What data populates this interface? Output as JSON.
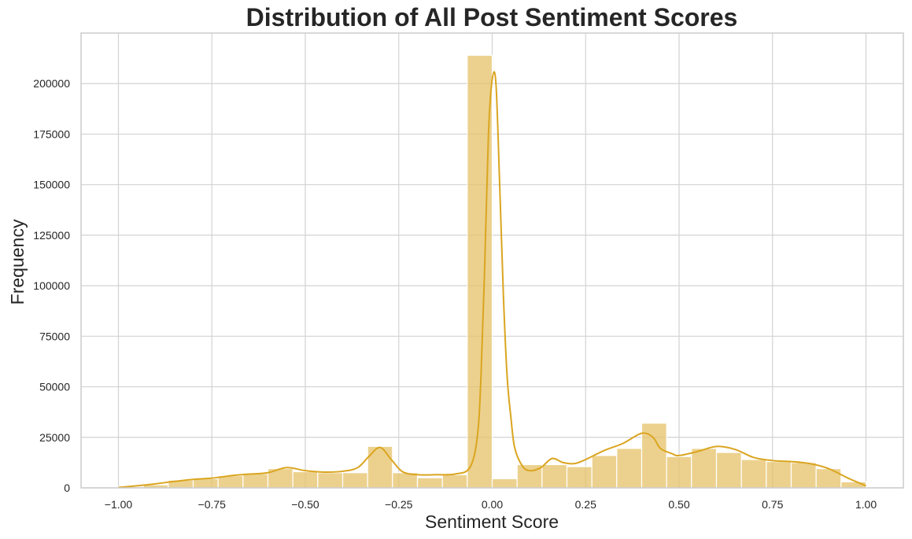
{
  "chart_data": {
    "type": "histogram",
    "title": "Distribution of All Post Sentiment Scores",
    "xlabel": "Sentiment Score",
    "ylabel": "Frequency",
    "xlim": [
      -1.1,
      1.1
    ],
    "ylim": [
      0,
      225000
    ],
    "x_ticks": [
      -1.0,
      -0.75,
      -0.5,
      -0.25,
      0.0,
      0.25,
      0.5,
      0.75,
      1.0
    ],
    "x_tick_labels": [
      "−1.00",
      "−0.75",
      "−0.50",
      "−0.25",
      "0.00",
      "0.25",
      "0.50",
      "0.75",
      "1.00"
    ],
    "y_ticks": [
      0,
      25000,
      50000,
      75000,
      100000,
      125000,
      150000,
      175000,
      200000
    ],
    "y_tick_labels": [
      "0",
      "25000",
      "50000",
      "75000",
      "100000",
      "125000",
      "150000",
      "175000",
      "200000"
    ],
    "grid": true,
    "bar_color": "#e6c168",
    "bar_opacity": 0.75,
    "line_color": "#daa520",
    "bin_edges": [
      -1.0,
      -0.9333,
      -0.8667,
      -0.8,
      -0.7333,
      -0.6667,
      -0.6,
      -0.5333,
      -0.4667,
      -0.4,
      -0.3333,
      -0.2667,
      -0.2,
      -0.1333,
      -0.0667,
      0.0,
      0.0667,
      0.1333,
      0.2,
      0.2667,
      0.3333,
      0.4,
      0.4667,
      0.5333,
      0.6,
      0.6667,
      0.7333,
      0.8,
      0.8667,
      0.9333,
      1.0
    ],
    "counts": [
      600,
      1500,
      3800,
      4500,
      6000,
      7000,
      9500,
      8000,
      7500,
      7500,
      20500,
      7500,
      5000,
      6500,
      214000,
      4500,
      11500,
      11500,
      10500,
      16000,
      19500,
      32000,
      15500,
      19500,
      17500,
      14000,
      13000,
      12500,
      9500,
      3000
    ],
    "kde": {
      "x": [
        -1.0,
        -0.95,
        -0.9,
        -0.85,
        -0.8,
        -0.75,
        -0.7,
        -0.65,
        -0.6,
        -0.55,
        -0.5,
        -0.45,
        -0.4,
        -0.36,
        -0.33,
        -0.3,
        -0.27,
        -0.24,
        -0.2,
        -0.15,
        -0.1,
        -0.06,
        -0.04,
        -0.03,
        -0.02,
        -0.01,
        0.0,
        0.01,
        0.02,
        0.03,
        0.04,
        0.05,
        0.06,
        0.08,
        0.1,
        0.13,
        0.16,
        0.19,
        0.22,
        0.25,
        0.3,
        0.35,
        0.4,
        0.43,
        0.45,
        0.48,
        0.5,
        0.55,
        0.6,
        0.65,
        0.7,
        0.75,
        0.8,
        0.85,
        0.9,
        0.95,
        1.0
      ],
      "y": [
        200,
        1000,
        2000,
        3200,
        4200,
        4800,
        6000,
        6800,
        7500,
        10000,
        8500,
        7800,
        8200,
        10000,
        15500,
        20000,
        14000,
        8000,
        6500,
        6500,
        6800,
        10000,
        25000,
        55000,
        110000,
        175000,
        202000,
        200000,
        150000,
        95000,
        55000,
        35000,
        20000,
        11000,
        8500,
        10000,
        14500,
        12500,
        12000,
        14000,
        18500,
        22000,
        27000,
        25000,
        19500,
        17000,
        16000,
        18000,
        20500,
        19000,
        15000,
        13500,
        13000,
        12000,
        9500,
        5000,
        1000
      ]
    }
  }
}
